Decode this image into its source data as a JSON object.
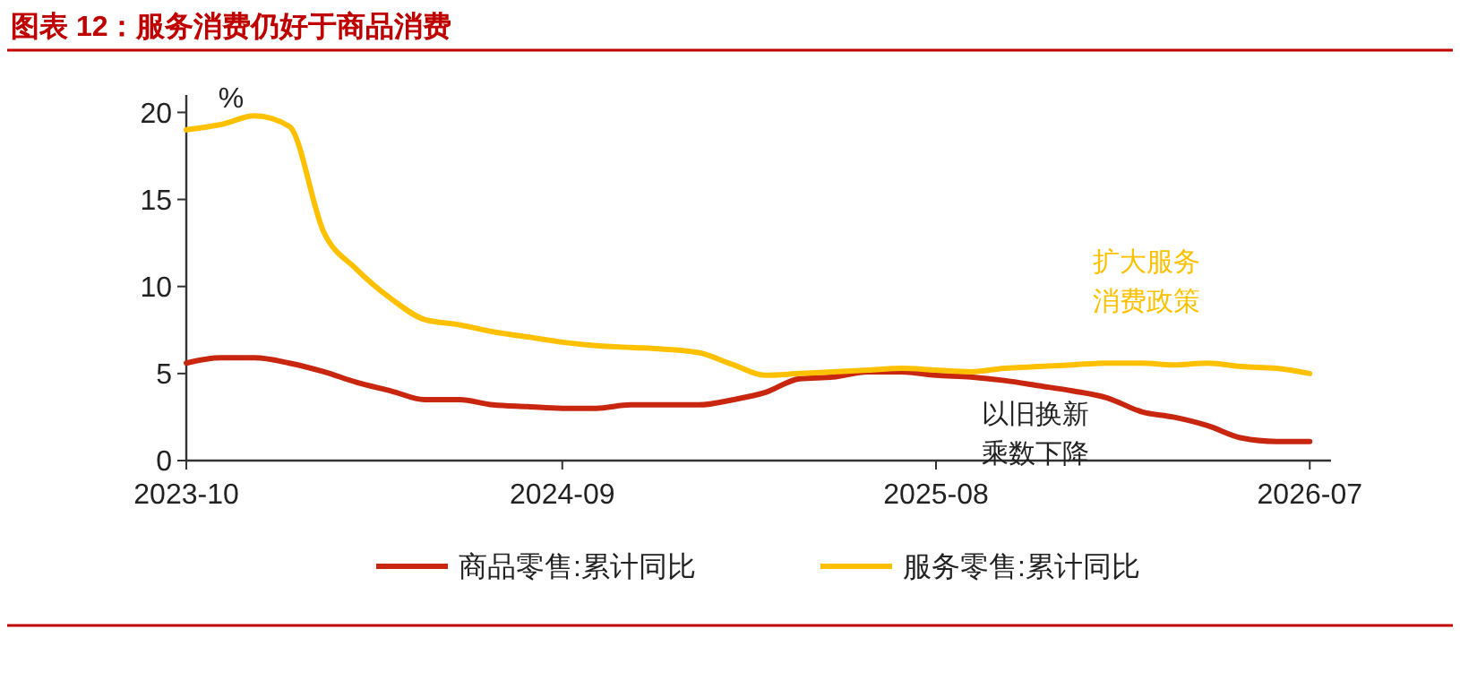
{
  "chart_data": {
    "type": "line",
    "title": "图表 12：服务消费仍好于商品消费",
    "ylabel": "%",
    "x": [
      "2023-10",
      "2023-11",
      "2023-12",
      "2024-01",
      "2024-02",
      "2024-03",
      "2024-04",
      "2024-05",
      "2024-06",
      "2024-07",
      "2024-08",
      "2024-09",
      "2024-10",
      "2024-11",
      "2024-12",
      "2025-01",
      "2025-02",
      "2025-03",
      "2025-04",
      "2025-05",
      "2025-06",
      "2025-07",
      "2025-08",
      "2025-09",
      "2025-10",
      "2025-11",
      "2025-12",
      "2026-01",
      "2026-02",
      "2026-03",
      "2026-04",
      "2026-05",
      "2026-06",
      "2026-07"
    ],
    "series": [
      {
        "name": "商品零售:累计同比",
        "color": "#c8260f",
        "values": [
          5.6,
          5.9,
          5.9,
          5.6,
          5.1,
          4.5,
          4.0,
          3.5,
          3.5,
          3.2,
          3.1,
          3.0,
          3.0,
          3.2,
          3.2,
          3.2,
          3.5,
          3.9,
          4.7,
          4.8,
          5.1,
          5.1,
          4.9,
          4.8,
          4.6,
          4.3,
          4.0,
          3.6,
          2.8,
          2.5,
          2.0,
          1.3,
          1.1,
          1.1
        ]
      },
      {
        "name": "服务零售:累计同比",
        "color": "#ffc000",
        "values": [
          19.0,
          19.3,
          19.8,
          19.2,
          13.1,
          11.0,
          9.3,
          8.1,
          7.8,
          7.4,
          7.1,
          6.8,
          6.6,
          6.5,
          6.4,
          6.2,
          5.5,
          4.9,
          5.0,
          5.1,
          5.2,
          5.3,
          5.2,
          5.1,
          5.3,
          5.4,
          5.5,
          5.6,
          5.6,
          5.5,
          5.6,
          5.4,
          5.3,
          5.0
        ]
      }
    ],
    "xlim": [
      "2023-10",
      "2026-07-20"
    ],
    "xticks": [
      "2023-10",
      "2024-09",
      "2025-08",
      "2026-07"
    ],
    "ylim": [
      0,
      21
    ],
    "yticks": [
      0,
      5,
      10,
      15,
      20
    ],
    "annotations": [
      "扩大服务消费政策",
      "以旧换新乘数下降"
    ],
    "grid": false,
    "legend": "bottom",
    "marker": "none",
    "line_style": "solid"
  }
}
